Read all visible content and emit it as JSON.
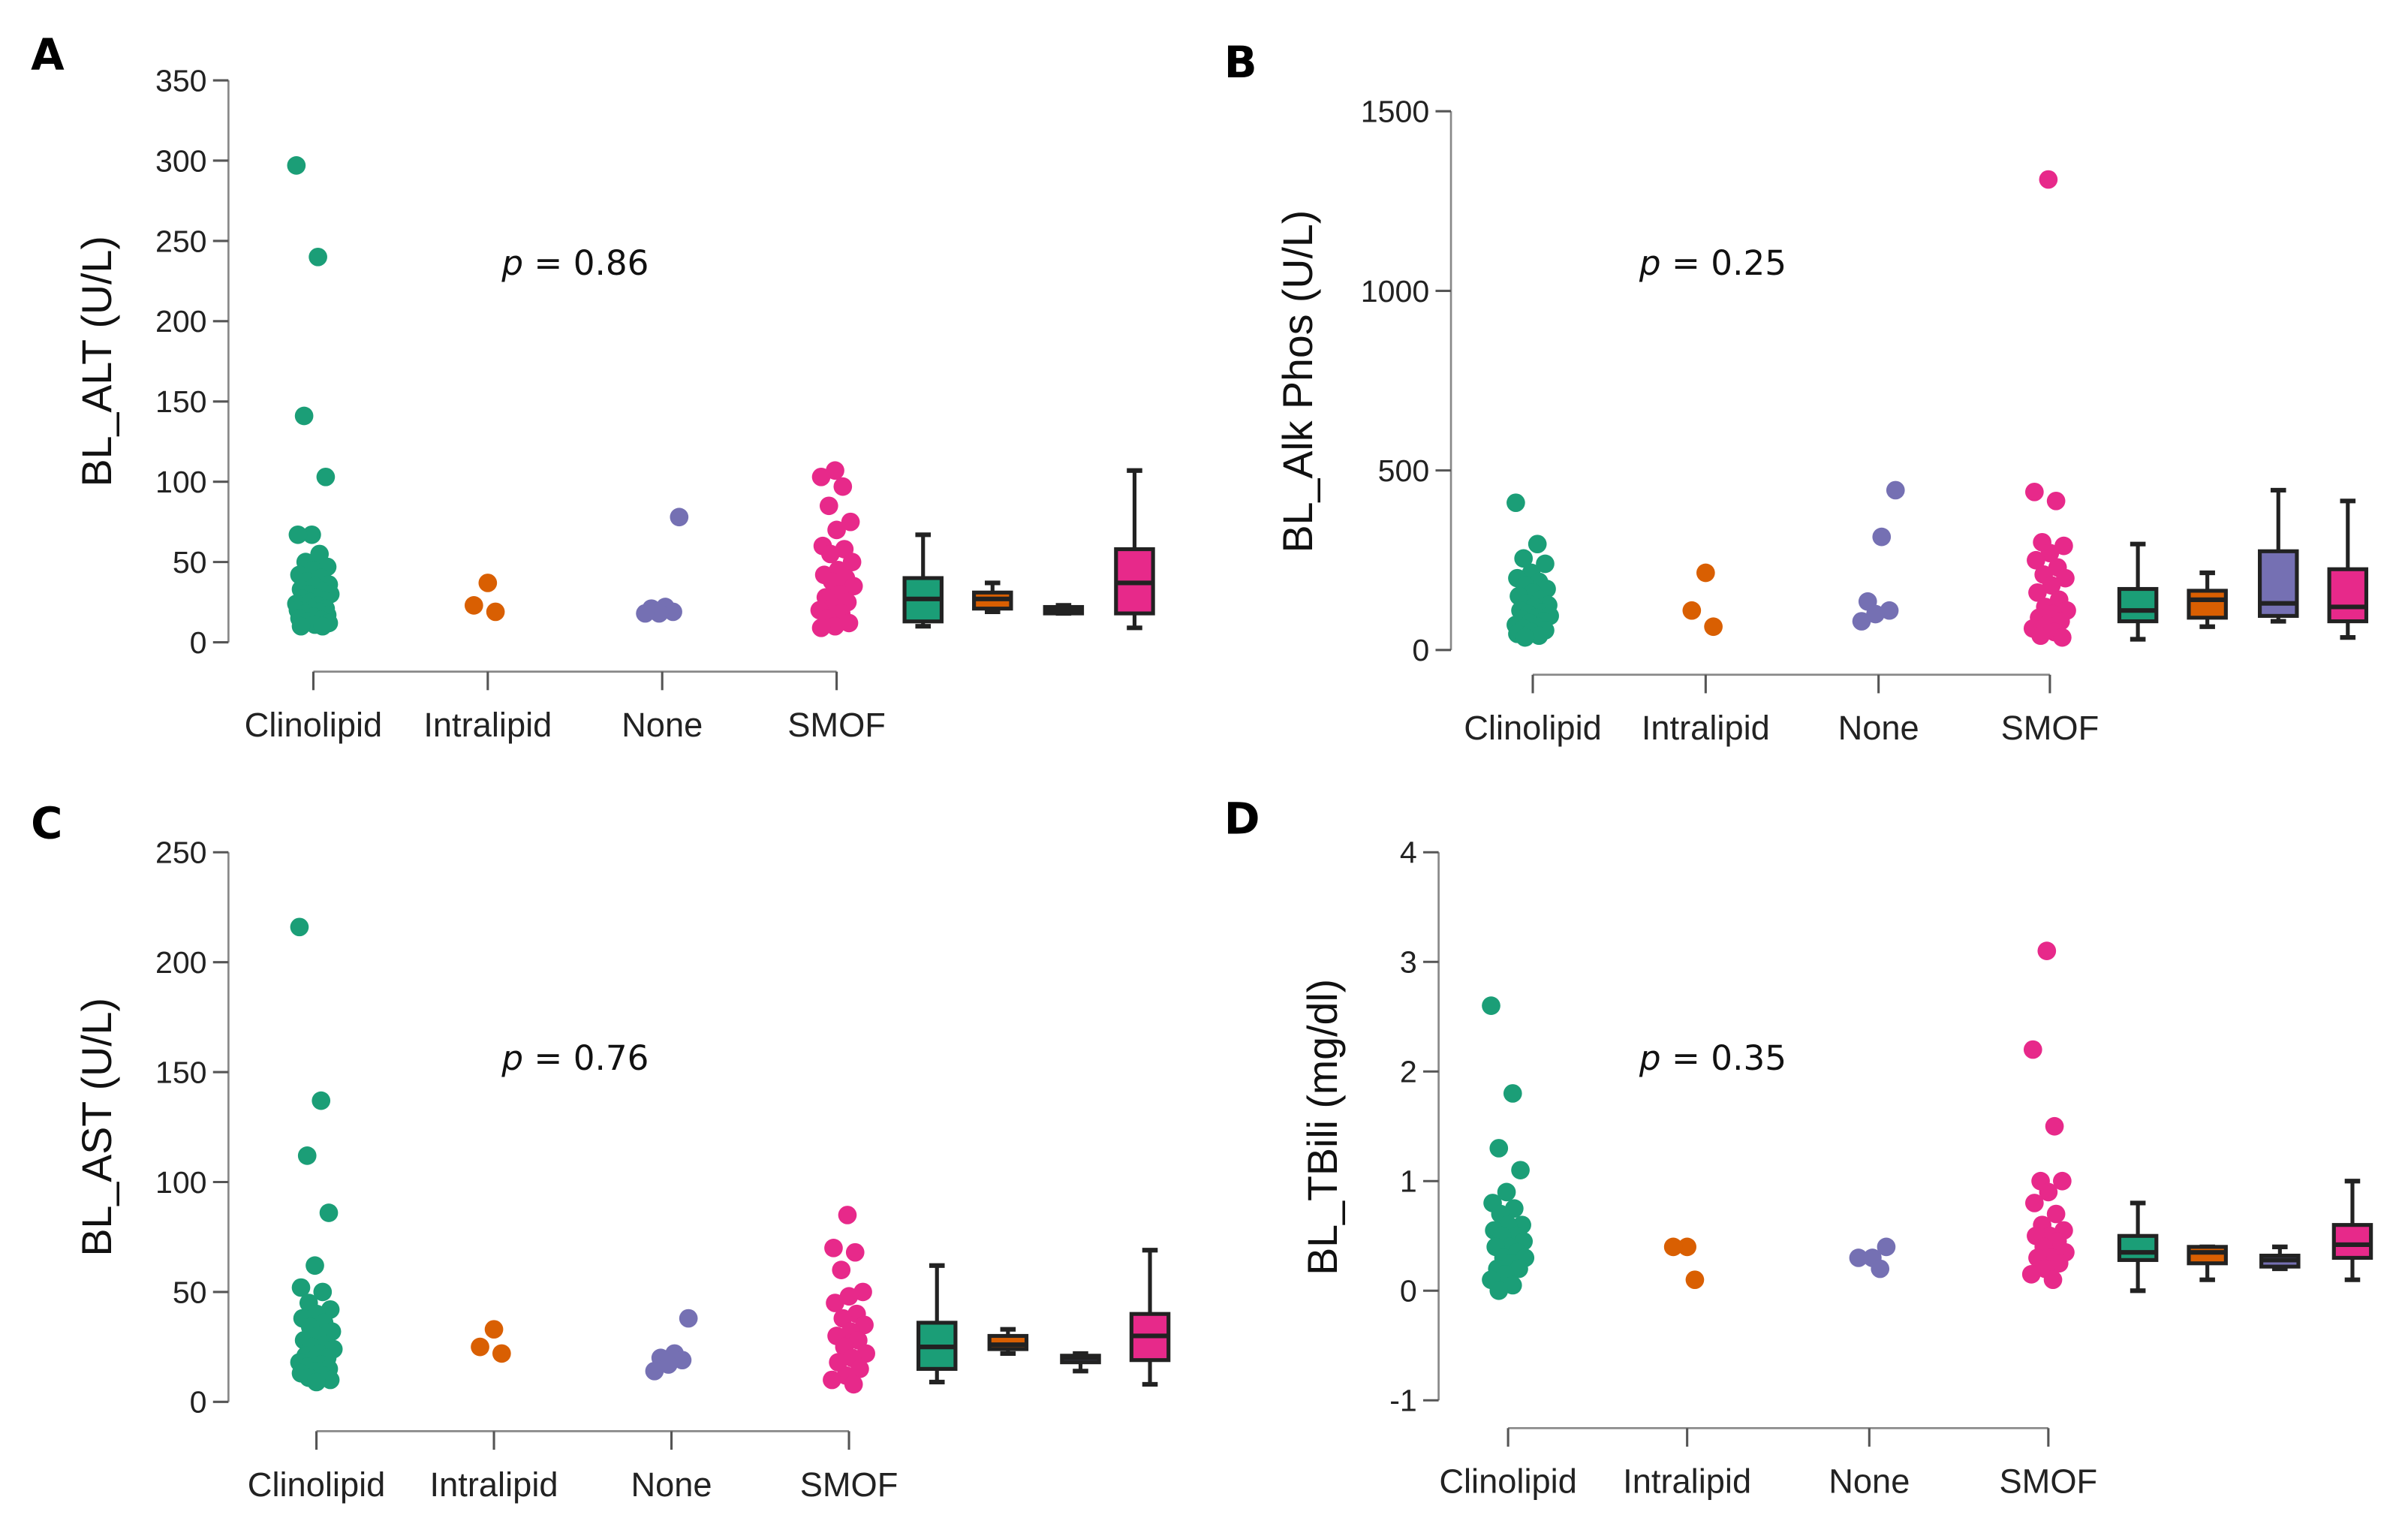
{
  "chart_data": [
    {
      "panel_label": "A",
      "type": "scatter",
      "ylabel": "BL_ALT (U/L)",
      "p_text": "p = 0.86",
      "categories": [
        "Clinolipid",
        "Intralipid",
        "None",
        "SMOF"
      ],
      "colors": [
        "#1B9E77",
        "#D95F02",
        "#7570B3",
        "#E7298A"
      ],
      "ylim": [
        0,
        350
      ],
      "yticks": [
        0,
        50,
        100,
        150,
        200,
        250,
        300,
        350
      ],
      "points": [
        [
          297,
          240,
          141,
          103,
          67,
          67,
          55,
          50,
          47,
          45,
          42,
          40,
          38,
          36,
          35,
          33,
          32,
          30,
          30,
          28,
          27,
          26,
          25,
          24,
          23,
          22,
          21,
          20,
          20,
          19,
          18,
          17,
          16,
          15,
          14,
          13,
          12,
          11,
          10,
          10
        ],
        [
          37,
          23,
          19
        ],
        [
          78,
          22,
          21,
          19,
          18,
          18
        ],
        [
          107,
          103,
          97,
          85,
          75,
          70,
          60,
          58,
          55,
          50,
          45,
          42,
          40,
          38,
          35,
          30,
          28,
          25,
          22,
          20,
          18,
          15,
          12,
          10,
          9
        ]
      ],
      "boxes": [
        [
          10,
          13,
          27,
          40,
          67
        ],
        [
          19,
          21,
          27,
          31,
          37
        ],
        [
          18,
          18,
          20,
          22,
          23
        ],
        [
          9,
          18,
          37,
          58,
          107
        ]
      ]
    },
    {
      "panel_label": "B",
      "type": "scatter",
      "ylabel": "BL_Alk Phos (U/L)",
      "p_text": "p = 0.25",
      "categories": [
        "Clinolipid",
        "Intralipid",
        "None",
        "SMOF"
      ],
      "colors": [
        "#1B9E77",
        "#D95F02",
        "#7570B3",
        "#E7298A"
      ],
      "ylim": [
        0,
        1500
      ],
      "yticks": [
        0,
        500,
        1000,
        1500
      ],
      "points": [
        [
          410,
          295,
          255,
          240,
          215,
          200,
          190,
          180,
          170,
          160,
          150,
          140,
          130,
          125,
          120,
          110,
          105,
          100,
          95,
          90,
          85,
          80,
          75,
          70,
          65,
          60,
          55,
          50,
          45,
          40,
          35
        ],
        [
          215,
          110,
          65
        ],
        [
          445,
          315,
          135,
          110,
          100,
          80
        ],
        [
          1310,
          440,
          415,
          300,
          290,
          270,
          250,
          230,
          210,
          200,
          180,
          160,
          140,
          120,
          110,
          100,
          90,
          80,
          70,
          60,
          50,
          40,
          35
        ]
      ],
      "boxes": [
        [
          30,
          80,
          110,
          170,
          295
        ],
        [
          65,
          90,
          140,
          165,
          215
        ],
        [
          80,
          95,
          130,
          275,
          445
        ],
        [
          35,
          80,
          120,
          225,
          415
        ]
      ]
    },
    {
      "panel_label": "C",
      "type": "scatter",
      "ylabel": "BL_AST (U/L)",
      "p_text": "p = 0.76",
      "categories": [
        "Clinolipid",
        "Intralipid",
        "None",
        "SMOF"
      ],
      "colors": [
        "#1B9E77",
        "#D95F02",
        "#7570B3",
        "#E7298A"
      ],
      "ylim": [
        0,
        250
      ],
      "yticks": [
        0,
        50,
        100,
        150,
        200,
        250
      ],
      "points": [
        [
          216,
          137,
          112,
          86,
          62,
          52,
          50,
          45,
          42,
          40,
          38,
          36,
          34,
          32,
          30,
          28,
          26,
          25,
          24,
          22,
          21,
          20,
          19,
          18,
          17,
          16,
          15,
          14,
          13,
          12,
          11,
          10,
          9
        ],
        [
          33,
          25,
          22
        ],
        [
          38,
          22,
          20,
          19,
          17,
          14
        ],
        [
          85,
          70,
          68,
          60,
          50,
          48,
          45,
          40,
          38,
          35,
          32,
          30,
          28,
          25,
          22,
          20,
          18,
          15,
          12,
          10,
          8
        ]
      ],
      "boxes": [
        [
          9,
          15,
          25,
          36,
          62
        ],
        [
          22,
          24,
          26,
          30,
          33
        ],
        [
          14,
          18,
          20,
          21,
          22
        ],
        [
          8,
          19,
          30,
          40,
          69
        ]
      ]
    },
    {
      "panel_label": "D",
      "type": "scatter",
      "ylabel": "BL_TBili (mg/dl)",
      "p_text": "p = 0.35",
      "categories": [
        "Clinolipid",
        "Intralipid",
        "None",
        "SMOF"
      ],
      "colors": [
        "#1B9E77",
        "#D95F02",
        "#7570B3",
        "#E7298A"
      ],
      "ylim": [
        -1,
        4
      ],
      "yticks": [
        -1,
        0,
        1,
        2,
        3,
        4
      ],
      "points": [
        [
          2.6,
          1.8,
          1.3,
          1.1,
          0.9,
          0.8,
          0.75,
          0.7,
          0.6,
          0.6,
          0.55,
          0.5,
          0.5,
          0.45,
          0.4,
          0.4,
          0.35,
          0.3,
          0.3,
          0.25,
          0.2,
          0.2,
          0.15,
          0.1,
          0.05,
          0
        ],
        [
          0.4,
          0.4,
          0.1
        ],
        [
          0.4,
          0.3,
          0.3,
          0.2
        ],
        [
          3.1,
          2.2,
          1.5,
          1.0,
          1.0,
          0.9,
          0.8,
          0.7,
          0.6,
          0.55,
          0.5,
          0.5,
          0.45,
          0.4,
          0.35,
          0.3,
          0.3,
          0.25,
          0.2,
          0.15,
          0.1
        ]
      ],
      "boxes": [
        [
          0,
          0.28,
          0.35,
          0.5,
          0.8
        ],
        [
          0.1,
          0.25,
          0.35,
          0.4,
          0.4
        ],
        [
          0.2,
          0.22,
          0.28,
          0.32,
          0.4
        ],
        [
          0.1,
          0.3,
          0.42,
          0.6,
          1.0
        ]
      ]
    }
  ]
}
